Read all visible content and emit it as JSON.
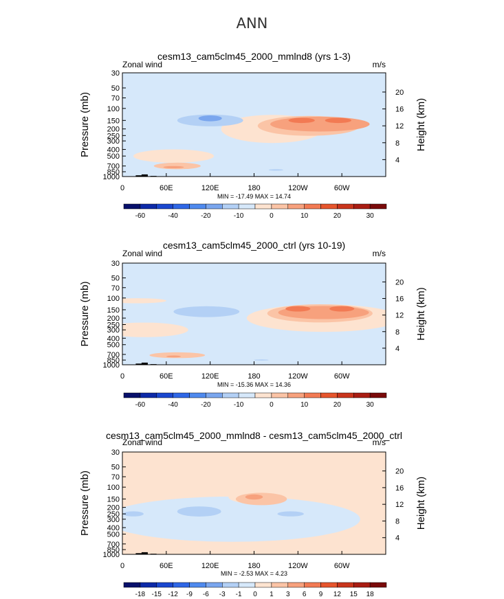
{
  "suptitle": "ANN",
  "common": {
    "left_string": "Zonal wind",
    "right_string": "m/s",
    "ylabel": "Pressure (mb)",
    "ylabel2": "Height (km)",
    "pressure_ticks": [
      30,
      50,
      70,
      100,
      150,
      200,
      250,
      300,
      400,
      500,
      700,
      850,
      1000
    ],
    "height_ticks": [
      20,
      16,
      12,
      8,
      4
    ],
    "xticks": [
      "0",
      "60E",
      "120E",
      "180",
      "120W",
      "60W"
    ],
    "xlim_deg_east": [
      0,
      360
    ],
    "ylim_mb": [
      1000,
      30
    ]
  },
  "colors": {
    "bg_light_blue": "#d6e8fa",
    "bg_light_peach": "#fde3d0",
    "outline": "#000000"
  },
  "chart_data": [
    {
      "type": "contour",
      "title": "cesm13_cam5clm45_2000_mmlnd8 (yrs 1-3)",
      "min_max": "MIN = -17.49  MAX = 14.74",
      "background": "bg_light_blue",
      "features": [
        {
          "level": 0,
          "lon": 205,
          "p": 200,
          "rx": 70,
          "ry": 1.9,
          "color": "#fde3d0"
        },
        {
          "level": 0,
          "lon": 70,
          "p": 500,
          "rx": 55,
          "ry": 0.9,
          "color": "#fde3d0"
        },
        {
          "level": 5,
          "lon": 255,
          "p": 180,
          "rx": 70,
          "ry": 1.35,
          "color": "#fbc4a6"
        },
        {
          "level": 10,
          "lon": 270,
          "p": 170,
          "rx": 68,
          "ry": 1.0,
          "color": "#f7a17d"
        },
        {
          "level": 15,
          "lon": 245,
          "p": 150,
          "rx": 18,
          "ry": 0.35,
          "color": "#f27a53"
        },
        {
          "level": 15,
          "lon": 295,
          "p": 150,
          "rx": 18,
          "ry": 0.35,
          "color": "#f27a53"
        },
        {
          "level": 5,
          "lon": 75,
          "p": 700,
          "rx": 32,
          "ry": 0.45,
          "color": "#fbc4a6"
        },
        {
          "level": 10,
          "lon": 70,
          "p": 730,
          "rx": 14,
          "ry": 0.15,
          "color": "#f7a17d"
        },
        {
          "level": -5,
          "lon": 120,
          "p": 150,
          "rx": 45,
          "ry": 0.8,
          "color": "#b3d0f5"
        },
        {
          "level": -10,
          "lon": 120,
          "p": 140,
          "rx": 16,
          "ry": 0.4,
          "color": "#7aa6ee"
        },
        {
          "level": -5,
          "lon": 210,
          "p": 800,
          "rx": 10,
          "ry": 0.1,
          "color": "#b3d0f5"
        }
      ]
    },
    {
      "type": "contour",
      "title": "cesm13_cam5clm45_2000_ctrl (yrs 10-19)",
      "min_max": "MIN = -15.36  MAX = 14.36",
      "background": "bg_light_blue",
      "features": [
        {
          "level": 0,
          "lon": 20,
          "p": 110,
          "rx": 40,
          "ry": 0.35,
          "color": "#fde3d0"
        },
        {
          "level": 0,
          "lon": 275,
          "p": 200,
          "rx": 105,
          "ry": 1.9,
          "color": "#fde3d0"
        },
        {
          "level": 0,
          "lon": 30,
          "p": 300,
          "rx": 60,
          "ry": 1.0,
          "color": "#fde3d0"
        },
        {
          "level": 5,
          "lon": 270,
          "p": 170,
          "rx": 72,
          "ry": 1.25,
          "color": "#fbc4a6"
        },
        {
          "level": 10,
          "lon": 275,
          "p": 165,
          "rx": 62,
          "ry": 0.9,
          "color": "#f7a17d"
        },
        {
          "level": 15,
          "lon": 240,
          "p": 145,
          "rx": 17,
          "ry": 0.38,
          "color": "#f27a53"
        },
        {
          "level": 15,
          "lon": 300,
          "p": 145,
          "rx": 17,
          "ry": 0.38,
          "color": "#f27a53"
        },
        {
          "level": 5,
          "lon": 75,
          "p": 720,
          "rx": 38,
          "ry": 0.4,
          "color": "#fbc4a6"
        },
        {
          "level": 10,
          "lon": 70,
          "p": 750,
          "rx": 10,
          "ry": 0.13,
          "color": "#f7a17d"
        },
        {
          "level": -5,
          "lon": 115,
          "p": 160,
          "rx": 45,
          "ry": 0.75,
          "color": "#b3d0f5"
        },
        {
          "level": -5,
          "lon": 190,
          "p": 850,
          "rx": 10,
          "ry": 0.08,
          "color": "#b3d0f5"
        }
      ]
    },
    {
      "type": "contour",
      "title": "cesm13_cam5clm45_2000_mmlnd8 - cesm13_cam5clm45_2000_ctrl",
      "min_max": "MIN = -2.53  MAX = 4.23",
      "background": "bg_light_peach",
      "features": [
        {
          "level": -1,
          "lon": 150,
          "p": 300,
          "rx": 175,
          "ry": 3.1,
          "color": "#d6e8fa"
        },
        {
          "level": 0,
          "lon": 180,
          "p": 140,
          "rx": 35,
          "ry": 0.9,
          "color": "#fde3d0"
        },
        {
          "level": 0,
          "lon": 320,
          "p": 100,
          "rx": 45,
          "ry": 0.6,
          "color": "#fde3d0"
        },
        {
          "level": 0,
          "lon": 40,
          "p": 700,
          "rx": 40,
          "ry": 0.55,
          "color": "#fde3d0"
        },
        {
          "level": 1,
          "lon": 190,
          "p": 150,
          "rx": 35,
          "ry": 0.85,
          "color": "#fbc4a6"
        },
        {
          "level": 3,
          "lon": 180,
          "p": 140,
          "rx": 12,
          "ry": 0.35,
          "color": "#f7a17d"
        },
        {
          "level": -1,
          "lon": 15,
          "p": 250,
          "rx": 14,
          "ry": 0.35,
          "color": "#b3d0f5"
        },
        {
          "level": -1,
          "lon": 105,
          "p": 230,
          "rx": 30,
          "ry": 0.7,
          "color": "#b3d0f5"
        },
        {
          "level": -1,
          "lon": 230,
          "p": 250,
          "rx": 18,
          "ry": 0.35,
          "color": "#b3d0f5"
        }
      ]
    }
  ],
  "colorbars": [
    {
      "colors": [
        "#08106b",
        "#0d2aa8",
        "#1a47cf",
        "#2f67e6",
        "#4f8aee",
        "#7aa6ee",
        "#b3d0f5",
        "#d6e8fa",
        "#fde3d0",
        "#fbc4a6",
        "#f7a17d",
        "#f27a53",
        "#e6552d",
        "#c9351c",
        "#a91d13",
        "#7a0a0a"
      ],
      "labels": [
        "-60",
        "-40",
        "-20",
        "-10",
        "0",
        "10",
        "20",
        "30"
      ],
      "label_every": 2,
      "label_offset": 1
    },
    {
      "colors": [
        "#08106b",
        "#0d2aa8",
        "#1a47cf",
        "#2f67e6",
        "#4f8aee",
        "#7aa6ee",
        "#b3d0f5",
        "#d6e8fa",
        "#fde3d0",
        "#fbc4a6",
        "#f7a17d",
        "#f27a53",
        "#e6552d",
        "#c9351c",
        "#a91d13",
        "#7a0a0a"
      ],
      "labels": [
        "-60",
        "-40",
        "-20",
        "-10",
        "0",
        "10",
        "20",
        "30"
      ],
      "label_every": 2,
      "label_offset": 1
    },
    {
      "colors": [
        "#08106b",
        "#0d2aa8",
        "#1a47cf",
        "#2f67e6",
        "#4f8aee",
        "#7aa6ee",
        "#b3d0f5",
        "#d6e8fa",
        "#fde3d0",
        "#fbc4a6",
        "#f7a17d",
        "#f27a53",
        "#e6552d",
        "#c9351c",
        "#a91d13",
        "#7a0a0a"
      ],
      "labels": [
        "-18",
        "-15",
        "-12",
        "-9",
        "-6",
        "-3",
        "-1",
        "0",
        "1",
        "3",
        "6",
        "9",
        "12",
        "15",
        "18"
      ],
      "label_every": 1,
      "label_offset": 1
    }
  ]
}
